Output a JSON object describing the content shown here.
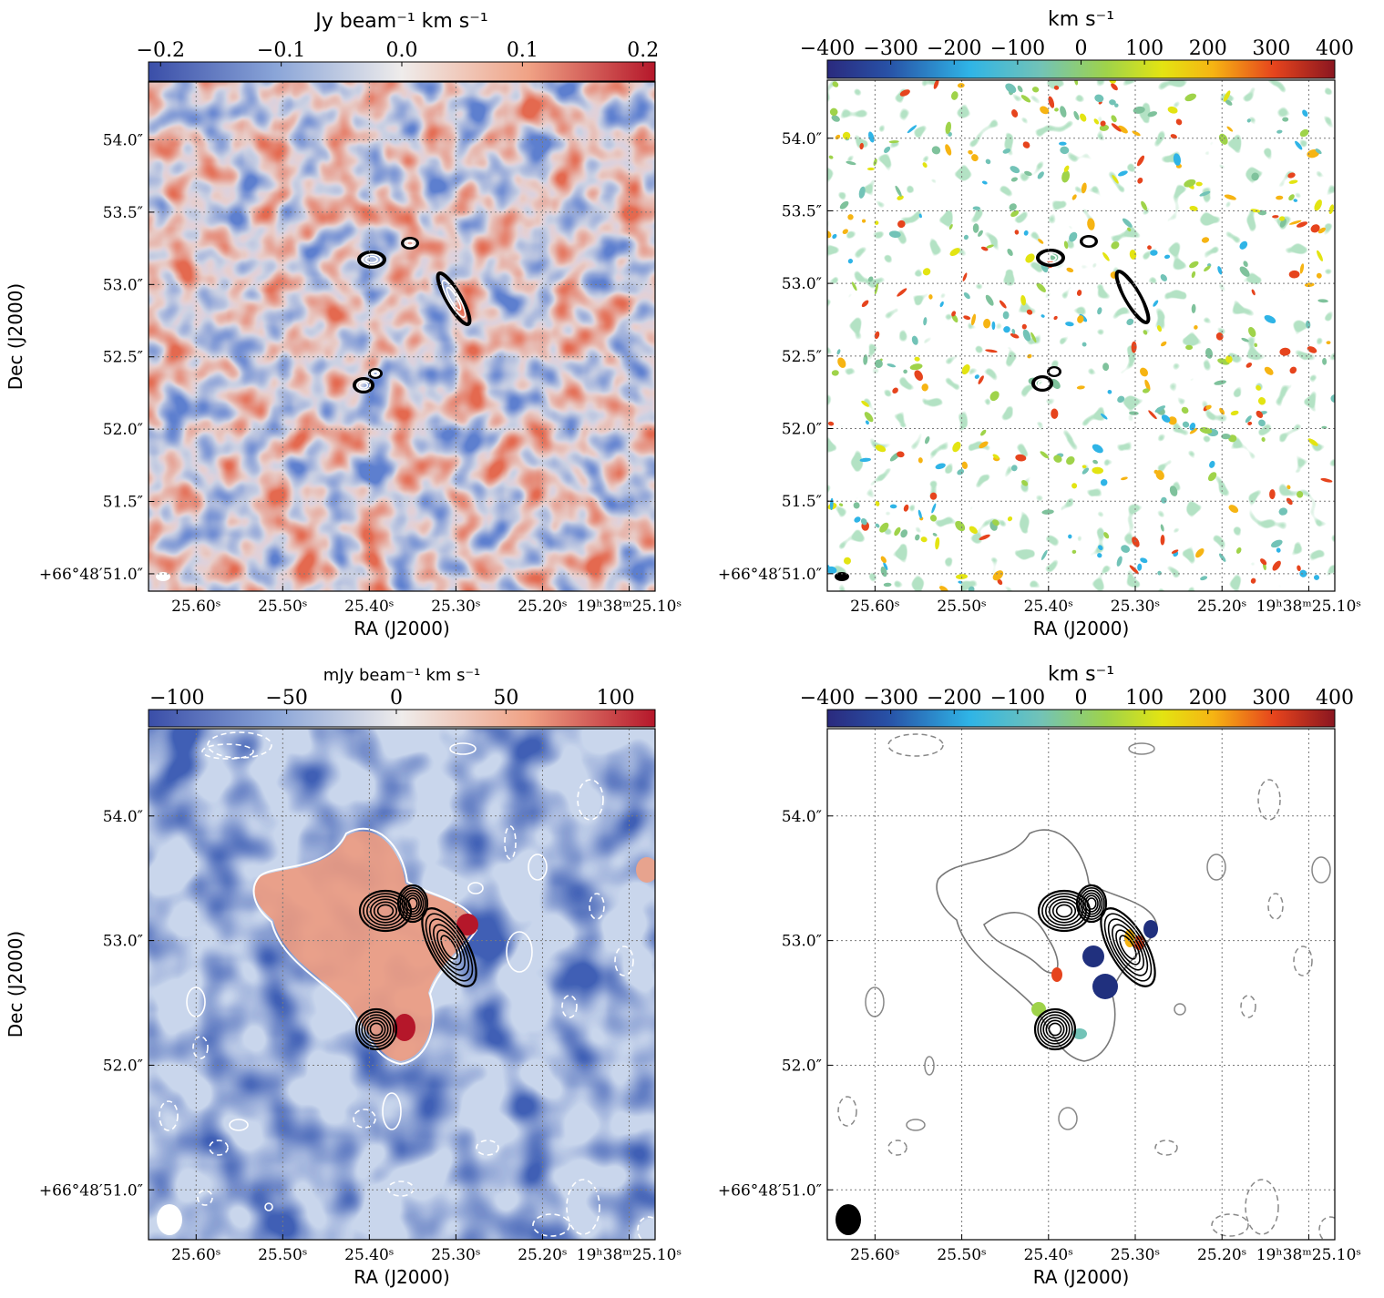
{
  "chart_data": [
    {
      "type": "heatmap",
      "panel": "top-left",
      "title": "Jy beam⁻¹ km s⁻¹",
      "colorbar_ticks": [
        "−0.2",
        "−0.1",
        "0.0",
        "0.1",
        "0.2"
      ],
      "colorbar_values": [
        -0.2,
        -0.1,
        0.0,
        0.1,
        0.2
      ],
      "colorbar_range": [
        -0.21,
        0.21
      ],
      "colormap": "diverging blue-white-red",
      "xlabel": "RA (J2000)",
      "ylabel": "Dec (J2000)",
      "x_ticks": [
        "25.60ˢ",
        "25.50ˢ",
        "25.40ˢ",
        "25.30ˢ",
        "25.20ˢ",
        "19ʰ38ᵐ25.10ˢ"
      ],
      "x_values": [
        25.6,
        25.5,
        25.4,
        25.3,
        25.2,
        25.1
      ],
      "x_range": [
        25.655,
        25.07
      ],
      "y_ticks": [
        "54.0″",
        "53.5″",
        "53.0″",
        "52.5″",
        "52.0″",
        "51.5″",
        "+66°48′51.0″"
      ],
      "y_values": [
        54.0,
        53.5,
        53.0,
        52.5,
        52.0,
        51.5,
        51.0
      ],
      "y_range": [
        50.88,
        54.4
      ],
      "black_contour_sources": [
        {
          "ra": 25.395,
          "dec": 53.18,
          "size": "medium"
        },
        {
          "ra": 25.345,
          "dec": 53.28,
          "size": "small"
        },
        {
          "ra": 25.285,
          "dec": 52.92,
          "size": "elongated"
        },
        {
          "ra": 25.38,
          "dec": 52.38,
          "size": "small"
        },
        {
          "ra": 25.4,
          "dec": 52.3,
          "size": "small"
        }
      ]
    },
    {
      "type": "heatmap",
      "panel": "top-right",
      "title": "km s⁻¹",
      "colorbar_ticks": [
        "−400",
        "−300",
        "−200",
        "−100",
        "0",
        "100",
        "200",
        "300",
        "400"
      ],
      "colorbar_values": [
        -400,
        -300,
        -200,
        -100,
        0,
        100,
        200,
        300,
        400
      ],
      "colorbar_range": [
        -400,
        400
      ],
      "colormap": "jet-like velocity",
      "xlabel": "RA (J2000)",
      "ylabel": "",
      "x_ticks": [
        "25.60ˢ",
        "25.50ˢ",
        "25.40ˢ",
        "25.30ˢ",
        "25.20ˢ",
        "19ʰ38ᵐ25.10ˢ"
      ],
      "x_values": [
        25.6,
        25.5,
        25.4,
        25.3,
        25.2,
        25.1
      ],
      "x_range": [
        25.655,
        25.07
      ],
      "y_ticks": [
        "54.0″",
        "53.5″",
        "53.0″",
        "52.5″",
        "52.0″",
        "51.5″",
        "+66°48′51.0″"
      ],
      "y_values": [
        54.0,
        53.5,
        53.0,
        52.5,
        52.0,
        51.5,
        51.0
      ],
      "y_range": [
        50.88,
        54.4
      ]
    },
    {
      "type": "heatmap",
      "panel": "bottom-left",
      "title": "mJy beam⁻¹ km s⁻¹",
      "colorbar_ticks": [
        "−100",
        "−50",
        "0",
        "50",
        "100"
      ],
      "colorbar_values": [
        -100,
        -50,
        0,
        50,
        100
      ],
      "colorbar_range": [
        -113,
        118
      ],
      "colormap": "diverging blue-white-red",
      "xlabel": "RA (J2000)",
      "ylabel": "Dec (J2000)",
      "x_ticks": [
        "25.60ˢ",
        "25.50ˢ",
        "25.40ˢ",
        "25.30ˢ",
        "25.20ˢ",
        "19ʰ38ᵐ25.10ˢ"
      ],
      "x_values": [
        25.6,
        25.5,
        25.4,
        25.3,
        25.2,
        25.1
      ],
      "x_range": [
        25.655,
        25.07
      ],
      "y_ticks": [
        "54.0″",
        "53.0″",
        "52.0″",
        "+66°48′51.0″"
      ],
      "y_values": [
        54.0,
        53.0,
        52.0,
        51.0
      ],
      "y_range": [
        50.6,
        54.7
      ]
    },
    {
      "type": "heatmap",
      "panel": "bottom-right",
      "title": "km s⁻¹",
      "colorbar_ticks": [
        "−400",
        "−300",
        "−200",
        "−100",
        "0",
        "100",
        "200",
        "300",
        "400"
      ],
      "colorbar_values": [
        -400,
        -300,
        -200,
        -100,
        0,
        100,
        200,
        300,
        400
      ],
      "colorbar_range": [
        -400,
        400
      ],
      "colormap": "jet-like velocity",
      "xlabel": "RA (J2000)",
      "ylabel": "",
      "x_ticks": [
        "25.60ˢ",
        "25.50ˢ",
        "25.40ˢ",
        "25.30ˢ",
        "25.20ˢ",
        "19ʰ38ᵐ25.10ˢ"
      ],
      "x_values": [
        25.6,
        25.5,
        25.4,
        25.3,
        25.2,
        25.1
      ],
      "x_range": [
        25.655,
        25.07
      ],
      "y_ticks": [
        "54.0″",
        "53.0″",
        "52.0″",
        "+66°48′51.0″"
      ],
      "y_values": [
        54.0,
        53.0,
        52.0,
        51.0
      ],
      "y_range": [
        50.6,
        54.7
      ]
    }
  ]
}
